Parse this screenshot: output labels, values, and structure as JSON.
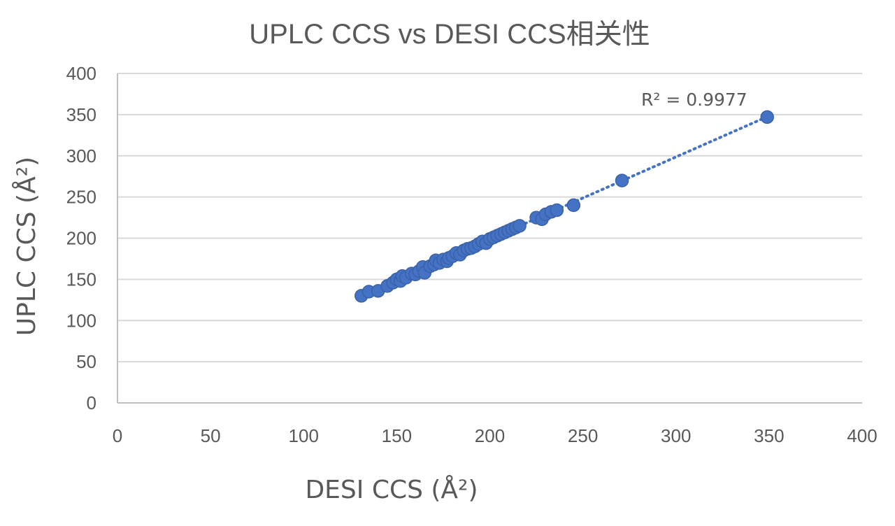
{
  "chart_data": {
    "type": "scatter",
    "title": "UPLC CCS vs DESI CCS相关性",
    "xlabel": "DESI CCS (Å²)",
    "ylabel": "UPLC CCS (Å²)",
    "xlim": [
      0,
      400
    ],
    "ylim": [
      0,
      400
    ],
    "xticks": [
      "0",
      "50",
      "100",
      "150",
      "200",
      "250",
      "300",
      "350",
      "400"
    ],
    "yticks": [
      "0",
      "50",
      "100",
      "150",
      "200",
      "250",
      "300",
      "350",
      "400"
    ],
    "grid": true,
    "marker_color": "#4472c4",
    "trendline": {
      "style": "dotted",
      "x_range": [
        131,
        349
      ],
      "slope": 0.997,
      "intercept": -0.5,
      "annotation": "R² = 0.9977"
    },
    "points": [
      {
        "x": 131,
        "y": 130
      },
      {
        "x": 135,
        "y": 135
      },
      {
        "x": 140,
        "y": 136
      },
      {
        "x": 145,
        "y": 142
      },
      {
        "x": 148,
        "y": 146
      },
      {
        "x": 150,
        "y": 150
      },
      {
        "x": 152,
        "y": 148
      },
      {
        "x": 153,
        "y": 154
      },
      {
        "x": 155,
        "y": 152
      },
      {
        "x": 158,
        "y": 157
      },
      {
        "x": 160,
        "y": 156
      },
      {
        "x": 162,
        "y": 160
      },
      {
        "x": 164,
        "y": 165
      },
      {
        "x": 165,
        "y": 158
      },
      {
        "x": 168,
        "y": 166
      },
      {
        "x": 170,
        "y": 168
      },
      {
        "x": 171,
        "y": 173
      },
      {
        "x": 173,
        "y": 170
      },
      {
        "x": 175,
        "y": 174
      },
      {
        "x": 177,
        "y": 172
      },
      {
        "x": 178,
        "y": 176
      },
      {
        "x": 180,
        "y": 178
      },
      {
        "x": 182,
        "y": 182
      },
      {
        "x": 184,
        "y": 180
      },
      {
        "x": 186,
        "y": 185
      },
      {
        "x": 188,
        "y": 187
      },
      {
        "x": 190,
        "y": 188
      },
      {
        "x": 192,
        "y": 190
      },
      {
        "x": 194,
        "y": 193
      },
      {
        "x": 196,
        "y": 196
      },
      {
        "x": 198,
        "y": 194
      },
      {
        "x": 200,
        "y": 199
      },
      {
        "x": 202,
        "y": 201
      },
      {
        "x": 204,
        "y": 203
      },
      {
        "x": 206,
        "y": 205
      },
      {
        "x": 208,
        "y": 207
      },
      {
        "x": 210,
        "y": 209
      },
      {
        "x": 212,
        "y": 211
      },
      {
        "x": 214,
        "y": 213
      },
      {
        "x": 216,
        "y": 215
      },
      {
        "x": 225,
        "y": 225
      },
      {
        "x": 228,
        "y": 223
      },
      {
        "x": 230,
        "y": 229
      },
      {
        "x": 233,
        "y": 232
      },
      {
        "x": 236,
        "y": 234
      },
      {
        "x": 245,
        "y": 240
      },
      {
        "x": 271,
        "y": 270
      },
      {
        "x": 349,
        "y": 347
      }
    ]
  }
}
